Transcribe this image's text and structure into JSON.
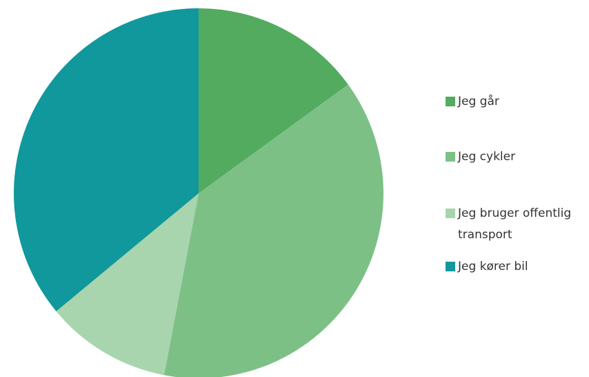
{
  "chart_data": {
    "type": "pie",
    "categories": [
      "Jeg går",
      "Jeg cykler",
      "Jeg bruger offentlig transport",
      "Jeg kører bil"
    ],
    "values": [
      15,
      38,
      11,
      36
    ],
    "colors": [
      "#52ab5f",
      "#7dc086",
      "#a8d5ad",
      "#11989c"
    ],
    "legend": "right"
  }
}
